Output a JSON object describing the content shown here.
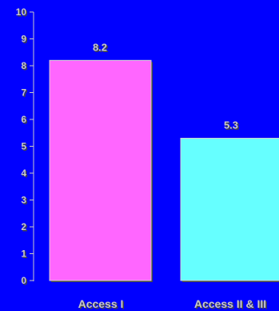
{
  "chart_data": {
    "type": "bar",
    "categories": [
      "Access I",
      "Access II & III"
    ],
    "values": [
      8.2,
      5.3
    ],
    "data_labels": [
      "8.2",
      "5.3"
    ],
    "yticks": [
      "0",
      "1",
      "2",
      "3",
      "4",
      "5",
      "6",
      "7",
      "8",
      "9",
      "10"
    ],
    "ylim": [
      0,
      10
    ],
    "title": "",
    "xlabel": "",
    "ylabel": "",
    "grid": false,
    "legend": "none",
    "colors": {
      "background": "#0000ff",
      "bars": [
        "#ff66ff",
        "#66ffff"
      ],
      "text": "#c8c8c8",
      "shadow": "#444444",
      "axis": "#c8c8c8"
    }
  }
}
